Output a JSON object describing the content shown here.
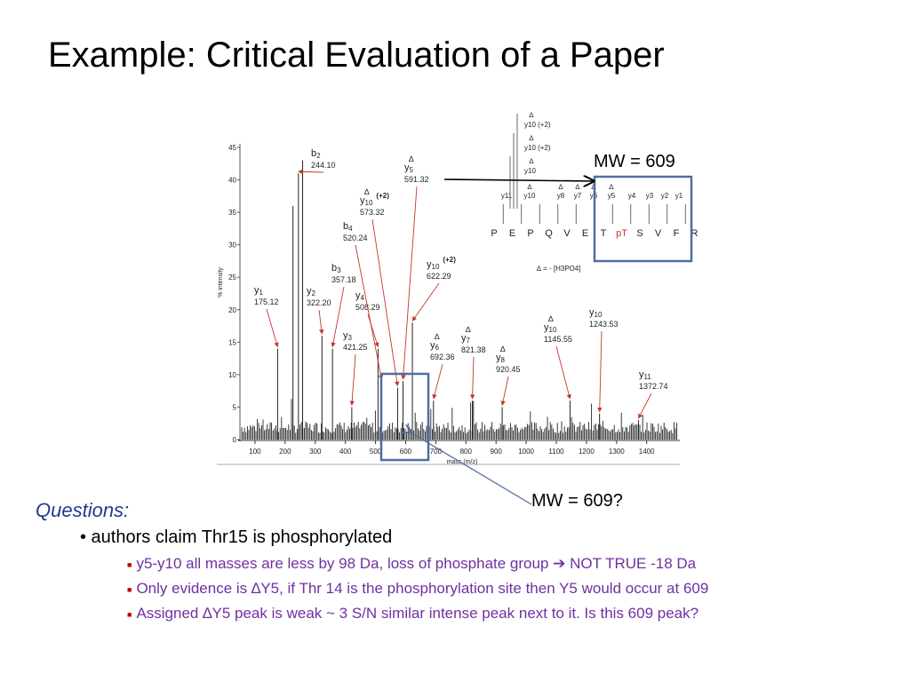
{
  "slide": {
    "title": "Example: Critical Evaluation of a Paper",
    "mw_top": "MW = 609",
    "mw_bottom": "MW = 609?",
    "questions_label": "Questions:",
    "bullet_main": "• authors claim Thr15 is phosphorylated",
    "subs": [
      {
        "pre": "y5-y10 all masses are less by 98 Da, loss of phosphate group ",
        "arrow": "➔",
        "post": " NOT TRUE -18 Da"
      },
      {
        "text": "Only evidence is ∆Y5, if Thr 14 is the phosphorylation site then Y5 would occur at 609"
      },
      {
        "text": "Assigned ∆Y5 peak is weak ~ 3 S/N similar intense peak next to it. Is this 609 peak?"
      }
    ],
    "colors": {
      "title": "#000000",
      "questions": "#1f3a8f",
      "sub_text": "#7030a0",
      "sub_bullet": "#c00000",
      "box": "#4f6ea0",
      "peak_arrow": "#c0392b",
      "pT": "#c0392b"
    }
  },
  "chart_data": {
    "type": "bar",
    "xlabel": "mass (m/z)",
    "ylabel": "% intensity",
    "xlim": [
      50,
      1510
    ],
    "ylim": [
      0,
      45
    ],
    "xticks": [
      100,
      200,
      300,
      400,
      500,
      600,
      700,
      800,
      900,
      1000,
      1100,
      1200,
      1300,
      1400
    ],
    "yticks": [
      0,
      5,
      10,
      15,
      20,
      25,
      30,
      35,
      40,
      45
    ],
    "annotated_peaks": [
      {
        "ion": "y1",
        "sup": "",
        "mz": 175.12,
        "label_mz": "175.12",
        "intensity": 14,
        "delta": false
      },
      {
        "ion": "b2",
        "sup": "",
        "mz": 244.1,
        "label_mz": "244.10",
        "intensity": 41,
        "delta": false
      },
      {
        "ion": "y2",
        "sup": "",
        "mz": 322.2,
        "label_mz": "322.20",
        "intensity": 16,
        "delta": false
      },
      {
        "ion": "b3",
        "sup": "",
        "mz": 357.18,
        "label_mz": "357.18",
        "intensity": 14,
        "delta": false
      },
      {
        "ion": "y3",
        "sup": "",
        "mz": 421.25,
        "label_mz": "421.25",
        "intensity": 5,
        "delta": false
      },
      {
        "ion": "y4",
        "sup": "",
        "mz": 508.29,
        "label_mz": "508.29",
        "intensity": 14,
        "delta": false
      },
      {
        "ion": "b4",
        "sup": "",
        "mz": 520.24,
        "label_mz": "520.24",
        "intensity": 9,
        "delta": false
      },
      {
        "ion": "y10",
        "sup": "(+2)",
        "mz": 573.32,
        "label_mz": "573.32",
        "intensity": 8,
        "delta": true
      },
      {
        "ion": "y5",
        "sup": "",
        "mz": 591.32,
        "label_mz": "591.32",
        "intensity": 9,
        "delta": true
      },
      {
        "ion": "y10",
        "sup": "(+2)",
        "mz": 622.29,
        "label_mz": "622.29",
        "intensity": 18,
        "delta": false
      },
      {
        "ion": "y6",
        "sup": "",
        "mz": 692.36,
        "label_mz": "692.36",
        "intensity": 6,
        "delta": true
      },
      {
        "ion": "y7",
        "sup": "",
        "mz": 821.38,
        "label_mz": "821.38",
        "intensity": 6,
        "delta": true
      },
      {
        "ion": "y8",
        "sup": "",
        "mz": 920.45,
        "label_mz": "920.45",
        "intensity": 5,
        "delta": true
      },
      {
        "ion": "y10",
        "sup": "",
        "mz": 1145.55,
        "label_mz": "1145.55",
        "intensity": 6,
        "delta": true
      },
      {
        "ion": "y10",
        "sup": "",
        "mz": 1243.53,
        "label_mz": "1243.53",
        "intensity": 4,
        "delta": false
      },
      {
        "ion": "y11",
        "sup": "",
        "mz": 1372.74,
        "label_mz": "1372.74",
        "intensity": 3,
        "delta": false
      }
    ],
    "tall_unlabeled_peaks": [
      {
        "mz": 226,
        "intensity": 36
      },
      {
        "mz": 258,
        "intensity": 43
      }
    ],
    "sequence": [
      "P",
      "E",
      "P",
      "Q",
      "V",
      "E",
      "T",
      "pT",
      "S",
      "V",
      "F",
      "R"
    ],
    "sequence_ion_labels_left": [
      "y11",
      "y10",
      "y8",
      "y7",
      "y6",
      "y5"
    ],
    "sequence_ion_labels_right": [
      "y4",
      "y3",
      "y2",
      "y1"
    ],
    "sequence_stack_labels": [
      "y10 (+2)",
      "y10 (+2)",
      "y10"
    ],
    "delta_definition": "∆ = - [H3PO4]"
  }
}
